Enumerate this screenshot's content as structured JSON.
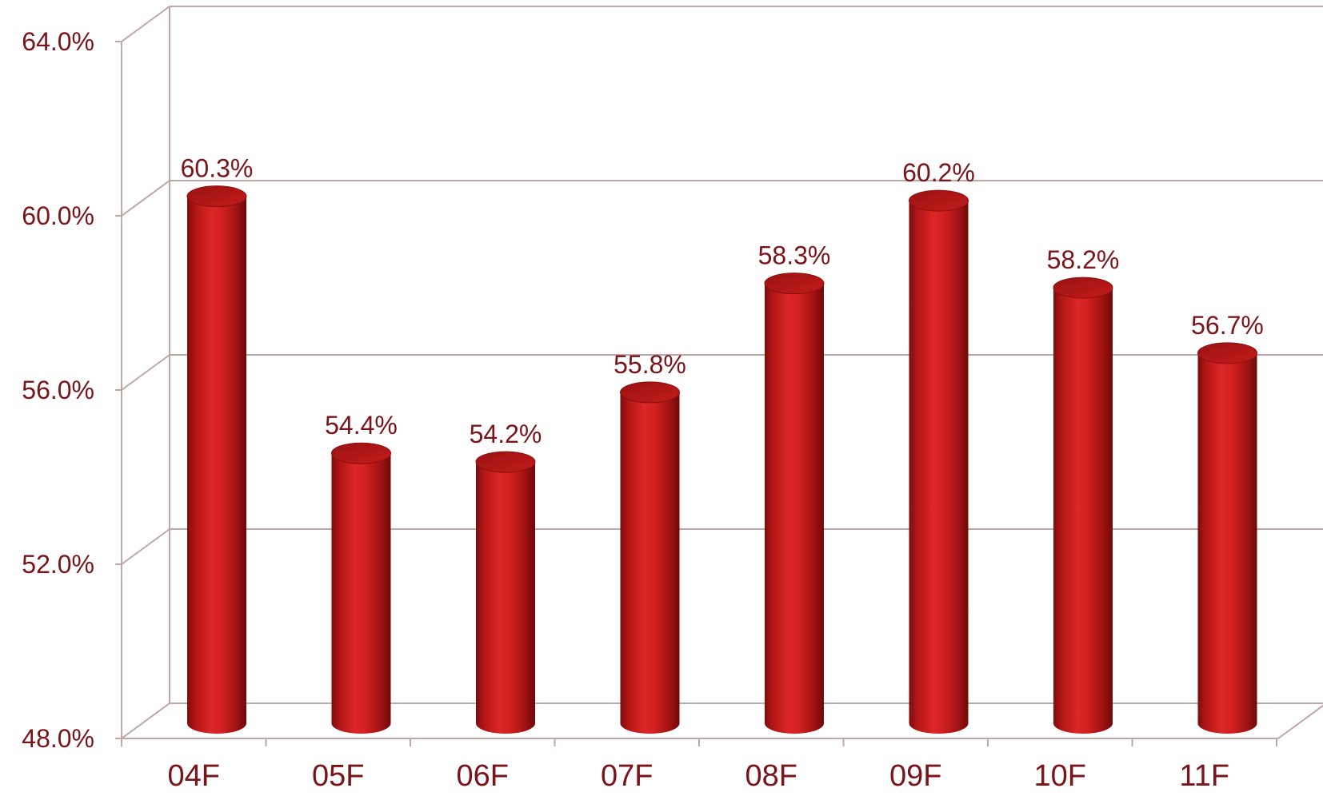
{
  "chart_data": {
    "type": "bar",
    "style": "3d-cylinder",
    "categories": [
      "04F",
      "05F",
      "06F",
      "07F",
      "08F",
      "09F",
      "10F",
      "11F"
    ],
    "values": [
      60.3,
      54.4,
      54.2,
      55.8,
      58.3,
      60.2,
      58.2,
      56.7
    ],
    "data_labels": [
      "60.3%",
      "54.4%",
      "54.2%",
      "55.8%",
      "58.3%",
      "60.2%",
      "58.2%",
      "56.7%"
    ],
    "y_ticks": [
      48.0,
      52.0,
      56.0,
      60.0,
      64.0
    ],
    "y_tick_labels": [
      "48.0%",
      "52.0%",
      "56.0%",
      "60.0%",
      "64.0%"
    ],
    "ylim": [
      48.0,
      64.0
    ],
    "grid": true,
    "legend": "none",
    "colors": {
      "bar": "#d42121",
      "bar_dark": "#7a0c0c",
      "bar_top": "#a51515",
      "text": "#7a1418",
      "grid": "#bfa6a6"
    }
  }
}
